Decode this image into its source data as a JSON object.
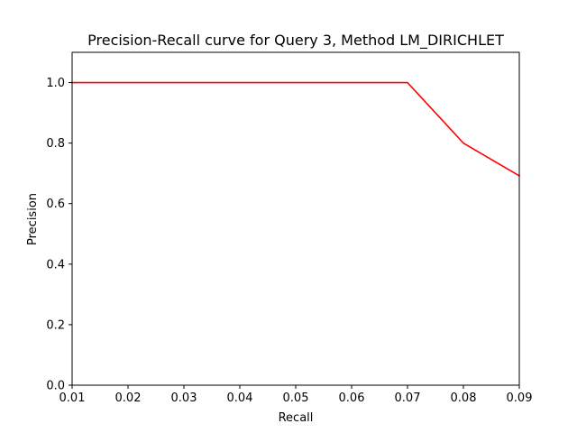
{
  "chart_data": {
    "type": "line",
    "title": "Precision-Recall curve for Query 3, Method LM_DIRICHLET",
    "xlabel": "Recall",
    "ylabel": "Precision",
    "xlim": [
      0.01,
      0.09
    ],
    "ylim": [
      0.0,
      1.1
    ],
    "x_ticks": [
      "0.01",
      "0.02",
      "0.03",
      "0.04",
      "0.05",
      "0.06",
      "0.07",
      "0.08",
      "0.09"
    ],
    "y_ticks": [
      "0.0",
      "0.2",
      "0.4",
      "0.6",
      "0.8",
      "1.0"
    ],
    "grid": false,
    "series": [
      {
        "color": "#ff0000",
        "x": [
          0.01,
          0.02,
          0.03,
          0.04,
          0.05,
          0.06,
          0.07,
          0.08,
          0.09
        ],
        "y": [
          1.0,
          1.0,
          1.0,
          1.0,
          1.0,
          1.0,
          1.0,
          0.8,
          0.692
        ]
      }
    ]
  }
}
